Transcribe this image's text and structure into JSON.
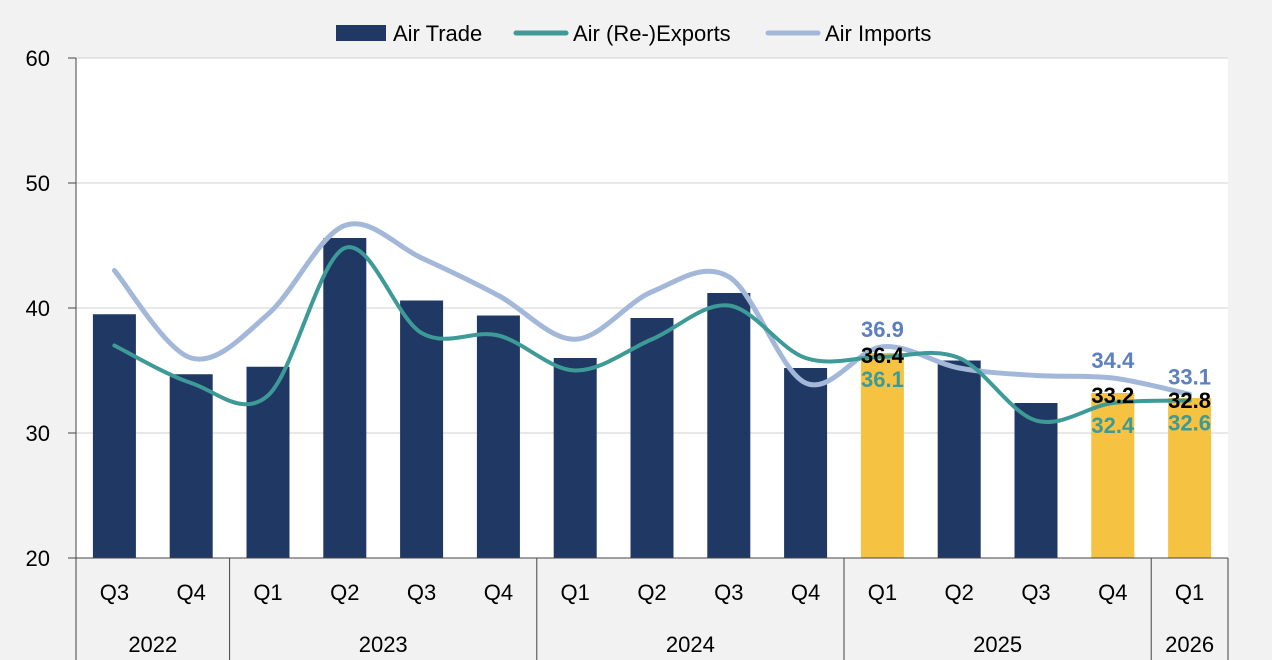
{
  "chart_data": {
    "type": "bar",
    "title": "",
    "xlabel": "",
    "ylabel": "",
    "ylim": [
      20,
      60
    ],
    "yticks": [
      20,
      30,
      40,
      50,
      60
    ],
    "grid": true,
    "legend_position": "top-center",
    "categories": [
      "Q3",
      "Q4",
      "Q1",
      "Q2",
      "Q3",
      "Q4",
      "Q1",
      "Q2",
      "Q3",
      "Q4",
      "Q1",
      "Q2",
      "Q3",
      "Q4",
      "Q1"
    ],
    "years": [
      {
        "label": "2022",
        "start": 0,
        "end": 1
      },
      {
        "label": "2023",
        "start": 2,
        "end": 5
      },
      {
        "label": "2024",
        "start": 6,
        "end": 9
      },
      {
        "label": "2025",
        "start": 10,
        "end": 13
      },
      {
        "label": "2026",
        "start": 14,
        "end": 14
      }
    ],
    "series": [
      {
        "name": "Air Trade",
        "kind": "bar",
        "color": "#1f3864",
        "forecast_color": "#f5c242",
        "forecast_from_index": 10,
        "forecast_indices": [
          10,
          13,
          14
        ],
        "values": [
          39.5,
          34.7,
          35.3,
          45.6,
          40.6,
          39.4,
          36.0,
          39.2,
          41.2,
          35.2,
          36.4,
          35.8,
          32.4,
          33.2,
          32.8
        ]
      },
      {
        "name": "Air (Re-)Exports",
        "kind": "line",
        "color": "#3d9a96",
        "values": [
          37.0,
          34.0,
          33.0,
          44.8,
          38.0,
          37.8,
          35.0,
          37.5,
          40.2,
          36.0,
          36.1,
          36.0,
          31.0,
          32.4,
          32.6
        ]
      },
      {
        "name": "Air Imports",
        "kind": "line",
        "color": "#a3b8d9",
        "values": [
          43.0,
          36.0,
          39.5,
          46.6,
          44.0,
          41.0,
          37.5,
          41.3,
          42.5,
          34.0,
          36.9,
          35.2,
          34.6,
          34.4,
          33.1
        ]
      }
    ],
    "data_labels": [
      {
        "index": 10,
        "text": "36.9",
        "series": "Air Imports",
        "color": "#5b7fbf"
      },
      {
        "index": 10,
        "text": "36.4",
        "series": "Air Trade",
        "color": "#000000"
      },
      {
        "index": 10,
        "text": "36.1",
        "series": "Air (Re-)Exports",
        "color": "#3d9a96"
      },
      {
        "index": 13,
        "text": "34.4",
        "series": "Air Imports",
        "color": "#5b7fbf"
      },
      {
        "index": 13,
        "text": "33.2",
        "series": "Air Trade",
        "color": "#000000"
      },
      {
        "index": 13,
        "text": "32.4",
        "series": "Air (Re-)Exports",
        "color": "#3d9a96"
      },
      {
        "index": 14,
        "text": "33.1",
        "series": "Air Imports",
        "color": "#5b7fbf"
      },
      {
        "index": 14,
        "text": "32.8",
        "series": "Air Trade",
        "color": "#000000"
      },
      {
        "index": 14,
        "text": "32.6",
        "series": "Air (Re-)Exports",
        "color": "#3d9a96"
      }
    ]
  }
}
